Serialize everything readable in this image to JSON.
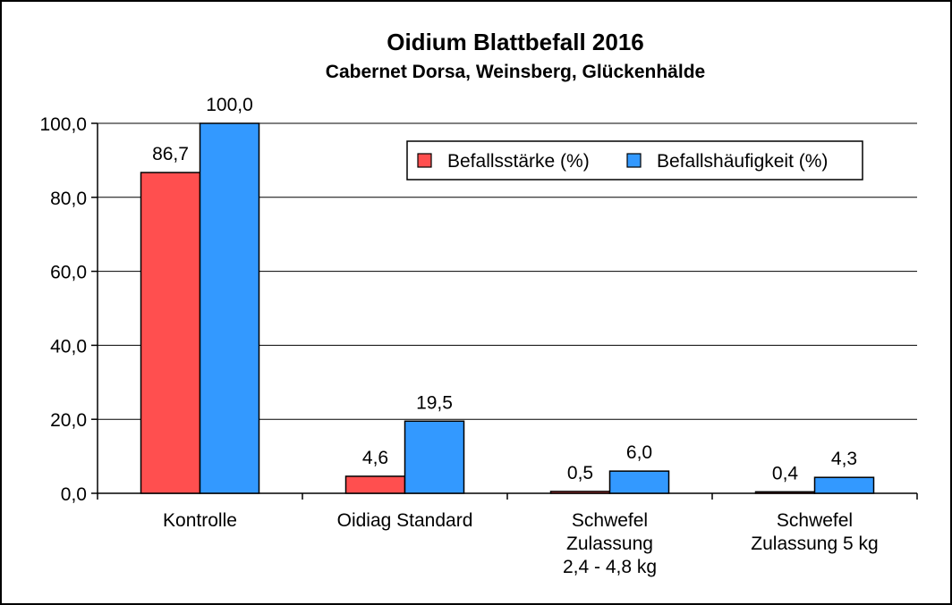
{
  "chart_data": {
    "type": "bar",
    "title": "Oidium Blattbefall 2016",
    "subtitle": "Cabernet Dorsa, Weinsberg, Glückenhälde",
    "categories": [
      [
        "Kontrolle"
      ],
      [
        "Oidiag Standard"
      ],
      [
        "Schwefel",
        "Zulassung",
        "2,4 - 4,8 kg"
      ],
      [
        "Schwefel",
        "Zulassung 5 kg"
      ]
    ],
    "series": [
      {
        "name": "Befallsstärke (%)",
        "color": "#ff4f4f",
        "values": [
          86.7,
          4.6,
          0.5,
          0.4
        ],
        "labels": [
          "86,7",
          "4,6",
          "0,5",
          "0,4"
        ]
      },
      {
        "name": "Befallshäufigkeit (%)",
        "color": "#3399ff",
        "values": [
          100.0,
          19.5,
          6.0,
          4.3
        ],
        "labels": [
          "100,0",
          "19,5",
          "6,0",
          "4,3"
        ]
      }
    ],
    "ylim": [
      0,
      100
    ],
    "yticks": [
      0,
      20,
      40,
      60,
      80,
      100
    ],
    "ytick_labels": [
      "0,0",
      "20,0",
      "40,0",
      "60,0",
      "80,0",
      "100,0"
    ],
    "xlabel": "",
    "ylabel": "",
    "grid": true,
    "legend_position": "top-right"
  }
}
